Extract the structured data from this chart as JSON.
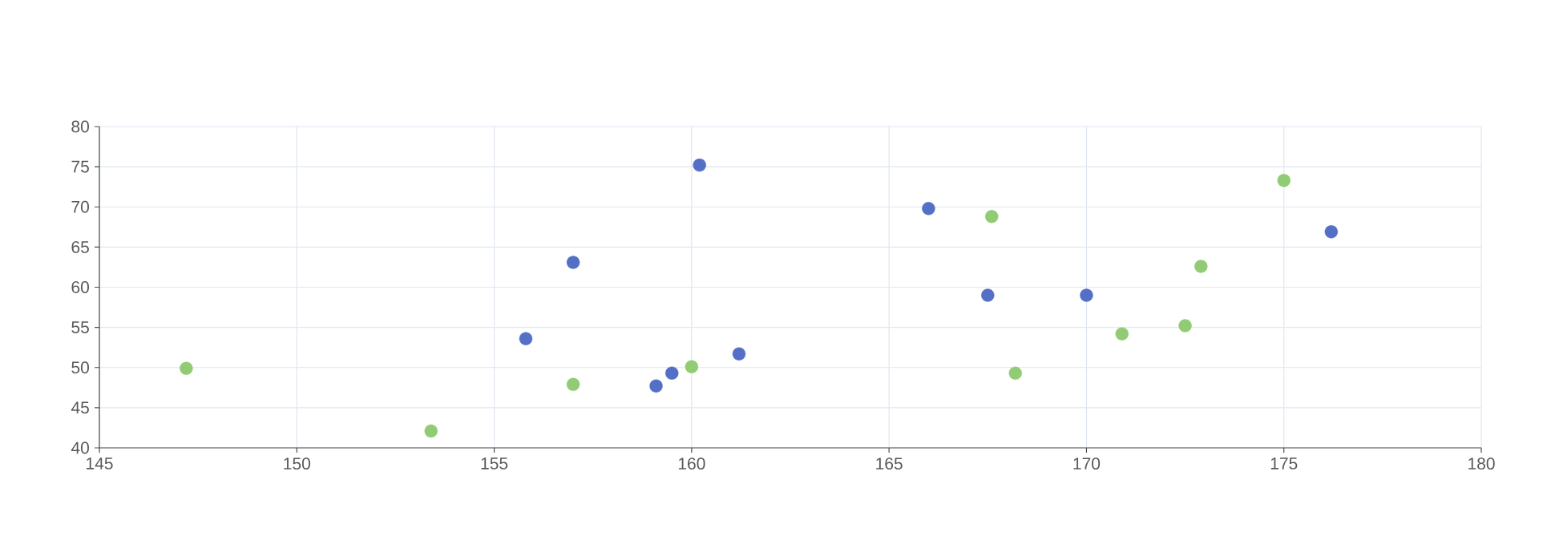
{
  "chart_data": {
    "type": "scatter",
    "series": [
      {
        "color": "#5470c6",
        "x": [
          160.2,
          157.0,
          155.8,
          159.1,
          159.5,
          161.2,
          166.0,
          167.5,
          170.0,
          176.2
        ],
        "values": [
          75.2,
          63.1,
          53.6,
          47.7,
          49.3,
          51.7,
          69.8,
          59.0,
          59.0,
          66.9
        ]
      },
      {
        "color": "#91cc75",
        "x": [
          147.2,
          153.4,
          157.0,
          160.0,
          167.6,
          168.2,
          170.9,
          172.5,
          172.9,
          175.0
        ],
        "values": [
          49.9,
          42.1,
          47.9,
          50.1,
          68.8,
          49.3,
          54.2,
          55.2,
          62.6,
          73.3
        ]
      }
    ],
    "xlim": [
      145,
      180
    ],
    "xticks": [
      145,
      150,
      155,
      160,
      165,
      170,
      175,
      180
    ],
    "ylim": [
      40,
      80
    ],
    "yticks": [
      40,
      45,
      50,
      55,
      60,
      65,
      70,
      75,
      80
    ],
    "grid": true,
    "marker": "circle"
  }
}
